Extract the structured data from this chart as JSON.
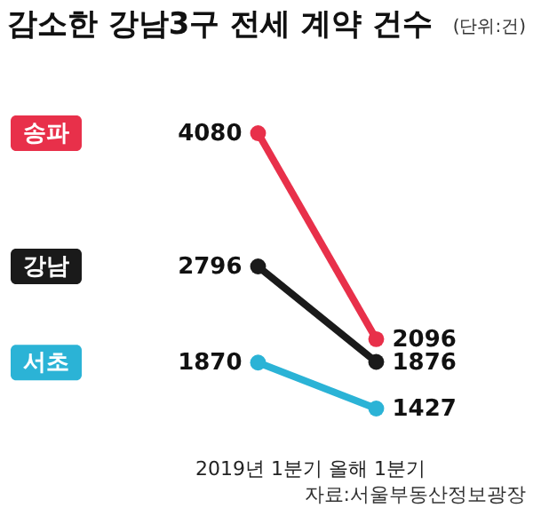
{
  "chart_data": {
    "type": "line",
    "title": "감소한 강남3구 전세 계약 건수",
    "annotations": [
      "(단위:건)",
      "자료:서울부동산정보광장"
    ],
    "categories": [
      "2019년 1분기",
      "올해 1분기"
    ],
    "series": [
      {
        "name": "송파",
        "color": "#e8304a",
        "values": [
          4080,
          2096
        ]
      },
      {
        "name": "강남",
        "color": "#1a1a1a",
        "values": [
          2796,
          1876
        ]
      },
      {
        "name": "서초",
        "color": "#2bb3d6",
        "values": [
          1870,
          1427
        ]
      }
    ],
    "data_labels": true,
    "marker": "circle"
  }
}
